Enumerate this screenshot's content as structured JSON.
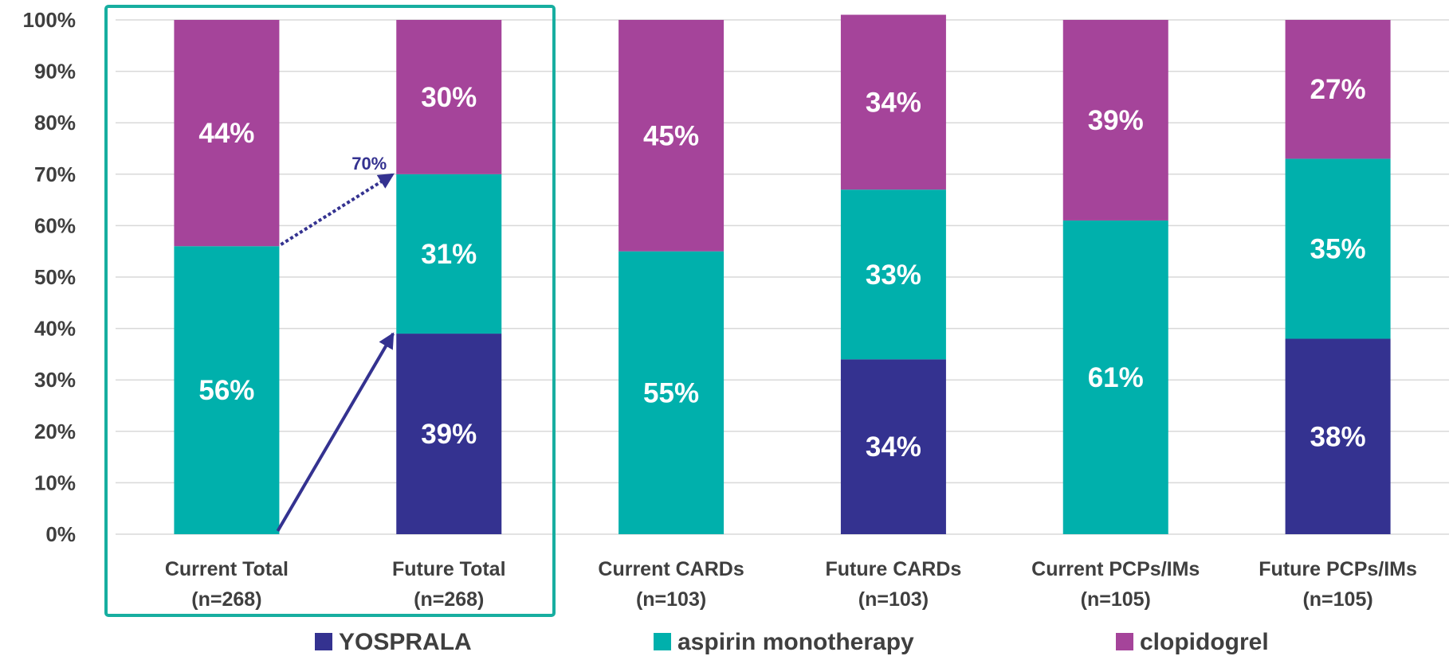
{
  "chart_data": {
    "type": "bar",
    "stacked": true,
    "categories": [
      [
        "Current Total",
        "(n=268)"
      ],
      [
        "Future Total",
        "(n=268)"
      ],
      [
        "Current CARDs",
        "(n=103)"
      ],
      [
        "Future CARDs",
        "(n=103)"
      ],
      [
        "Current PCPs/IMs",
        "(n=105)"
      ],
      [
        "Future PCPs/IMs",
        "(n=105)"
      ]
    ],
    "series": [
      {
        "name": "YOSPRALA",
        "color": "#343290",
        "values": [
          0,
          39,
          0,
          34,
          0,
          38
        ],
        "labels": [
          "",
          "39%",
          "",
          "34%",
          "",
          "38%"
        ]
      },
      {
        "name": "aspirin monotherapy",
        "color": "#00b0ac",
        "values": [
          56,
          31,
          55,
          33,
          61,
          35
        ],
        "labels": [
          "56%",
          "31%",
          "55%",
          "33%",
          "61%",
          "35%"
        ]
      },
      {
        "name": "clopidogrel",
        "color": "#a5449a",
        "values": [
          44,
          30,
          45,
          34,
          39,
          27
        ],
        "labels": [
          "44%",
          "30%",
          "45%",
          "34%",
          "39%",
          "27%"
        ]
      }
    ],
    "ylim": [
      0,
      100
    ],
    "yticks": [
      "0%",
      "10%",
      "20%",
      "30%",
      "40%",
      "50%",
      "60%",
      "70%",
      "80%",
      "90%",
      "100%"
    ],
    "grid": true,
    "legend": "bottom",
    "annotation": {
      "text": "70%",
      "from_value": 56,
      "to_value": 70
    },
    "highlight_box_color": "#17aea0"
  }
}
